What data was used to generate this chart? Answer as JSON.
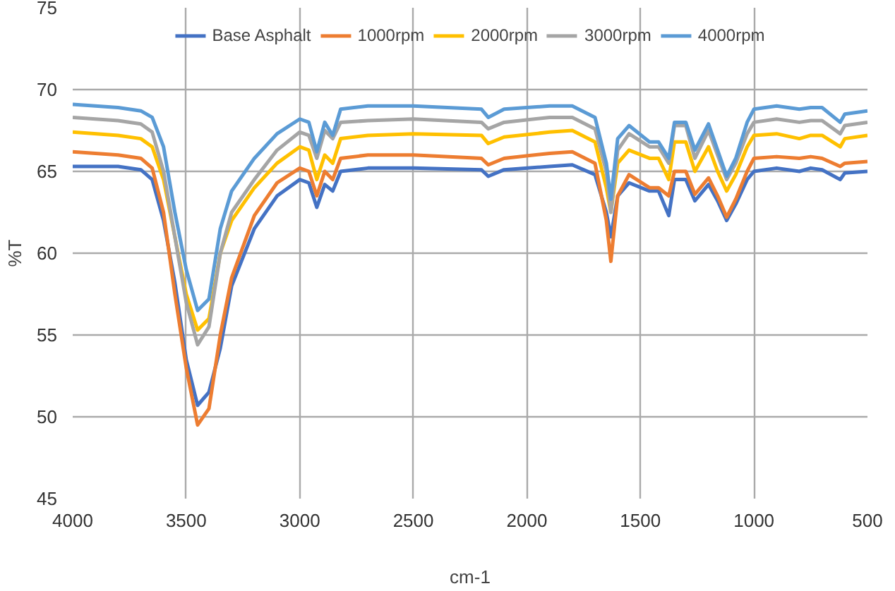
{
  "chart_data": {
    "type": "line",
    "xlabel": "cm-1",
    "ylabel": "%T",
    "xlim": [
      4000,
      500
    ],
    "xticks": [
      4000,
      3500,
      3000,
      2500,
      2000,
      1500,
      1000,
      500
    ],
    "ylim": [
      45,
      75
    ],
    "yticks": [
      45,
      50,
      55,
      60,
      65,
      70,
      75
    ],
    "grid": true,
    "legend": "top",
    "marker": "none",
    "line_style": "solid",
    "x": [
      4000,
      3800,
      3700,
      3650,
      3600,
      3550,
      3500,
      3450,
      3400,
      3350,
      3300,
      3200,
      3100,
      3000,
      2960,
      2925,
      2890,
      2855,
      2820,
      2700,
      2500,
      2200,
      2170,
      2100,
      1900,
      1800,
      1700,
      1650,
      1630,
      1600,
      1550,
      1460,
      1420,
      1375,
      1350,
      1300,
      1260,
      1200,
      1160,
      1120,
      1080,
      1030,
      1000,
      900,
      800,
      750,
      700,
      620,
      600,
      500
    ],
    "series": [
      {
        "name": "Base Asphalt",
        "color": "#4472c4",
        "values": [
          65.3,
          65.3,
          65.1,
          64.5,
          62.0,
          58.2,
          53.5,
          50.7,
          51.5,
          54.2,
          58.0,
          61.5,
          63.5,
          64.5,
          64.3,
          62.8,
          64.2,
          63.8,
          65.0,
          65.2,
          65.2,
          65.1,
          64.7,
          65.1,
          65.3,
          65.4,
          64.8,
          62.5,
          61.0,
          63.5,
          64.3,
          63.8,
          63.8,
          62.3,
          64.5,
          64.5,
          63.2,
          64.2,
          63.2,
          62.0,
          63.0,
          64.5,
          65.0,
          65.2,
          65.0,
          65.2,
          65.1,
          64.5,
          64.9,
          65.0
        ]
      },
      {
        "name": "1000rpm",
        "color": "#ed7d31",
        "values": [
          66.2,
          66.0,
          65.8,
          65.2,
          62.5,
          57.5,
          53.0,
          49.5,
          50.5,
          55.0,
          58.5,
          62.3,
          64.3,
          65.2,
          65.0,
          63.5,
          65.0,
          64.5,
          65.8,
          66.0,
          66.0,
          65.8,
          65.4,
          65.8,
          66.1,
          66.2,
          65.5,
          62.0,
          59.5,
          63.5,
          64.8,
          64.0,
          64.0,
          63.5,
          65.0,
          65.0,
          63.6,
          64.6,
          63.5,
          62.2,
          63.3,
          65.0,
          65.8,
          65.9,
          65.8,
          65.9,
          65.8,
          65.3,
          65.5,
          65.6
        ]
      },
      {
        "name": "2000rpm",
        "color": "#ffc000",
        "values": [
          67.4,
          67.2,
          67.0,
          66.5,
          64.5,
          61.0,
          57.5,
          55.3,
          56.0,
          60.0,
          62.0,
          64.0,
          65.5,
          66.5,
          66.3,
          64.5,
          66.0,
          65.5,
          67.0,
          67.2,
          67.3,
          67.2,
          66.7,
          67.1,
          67.4,
          67.5,
          66.8,
          64.0,
          62.5,
          65.5,
          66.3,
          65.8,
          65.8,
          64.5,
          66.8,
          66.8,
          65.0,
          66.5,
          65.0,
          63.8,
          64.8,
          66.5,
          67.2,
          67.3,
          67.0,
          67.2,
          67.2,
          66.5,
          67.0,
          67.2
        ]
      },
      {
        "name": "3000rpm",
        "color": "#a5a5a5",
        "values": [
          68.3,
          68.1,
          67.9,
          67.4,
          65.0,
          61.0,
          57.0,
          54.4,
          55.5,
          60.0,
          62.5,
          64.5,
          66.3,
          67.4,
          67.2,
          65.8,
          67.5,
          67.0,
          68.0,
          68.1,
          68.2,
          68.0,
          67.6,
          68.0,
          68.3,
          68.3,
          67.6,
          65.0,
          62.5,
          66.3,
          67.3,
          66.5,
          66.5,
          65.5,
          67.8,
          67.8,
          65.8,
          67.5,
          66.0,
          64.5,
          65.5,
          67.3,
          68.0,
          68.2,
          68.0,
          68.1,
          68.1,
          67.3,
          67.8,
          68.0
        ]
      },
      {
        "name": "4000rpm",
        "color": "#5b9bd5",
        "values": [
          69.1,
          68.9,
          68.7,
          68.3,
          66.5,
          62.5,
          59.0,
          56.5,
          57.2,
          61.5,
          63.8,
          65.8,
          67.3,
          68.2,
          68.0,
          66.2,
          68.0,
          67.2,
          68.8,
          69.0,
          69.0,
          68.8,
          68.3,
          68.8,
          69.0,
          69.0,
          68.3,
          65.5,
          63.3,
          67.0,
          67.8,
          66.8,
          66.8,
          65.8,
          68.0,
          68.0,
          66.3,
          67.9,
          66.3,
          64.7,
          65.8,
          68.0,
          68.8,
          69.0,
          68.8,
          68.9,
          68.9,
          68.0,
          68.5,
          68.7
        ]
      }
    ]
  }
}
